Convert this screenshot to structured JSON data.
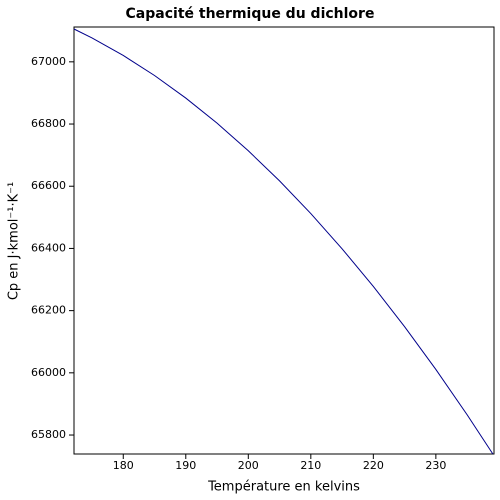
{
  "chart_data": {
    "type": "line",
    "title": "Capacité thermique du dichlore",
    "x_label": "Température en kelvins",
    "y_label": "Cp en J·kmol⁻¹·K⁻¹",
    "x": [
      172.12,
      175,
      180,
      185,
      190,
      195,
      200,
      205,
      210,
      215,
      220,
      225,
      230,
      235,
      239.12
    ],
    "series": [
      {
        "name": "Cp",
        "color": "#00008b",
        "values": [
          67105.6,
          67076.9,
          67020.5,
          66956.1,
          66883.5,
          66802.8,
          66714,
          66617.1,
          66512.1,
          66398.9,
          66277.7,
          66148.4,
          66010.8,
          65865.3,
          65739.0
        ]
      }
    ],
    "xlim": [
      172.12,
      239.3
    ],
    "ylim": [
      65739,
      67112
    ],
    "xticks": [
      180,
      190,
      200,
      210,
      220,
      230
    ],
    "yticks": [
      65800,
      66000,
      66200,
      66400,
      66600,
      66800,
      67000
    ],
    "grid": false
  }
}
